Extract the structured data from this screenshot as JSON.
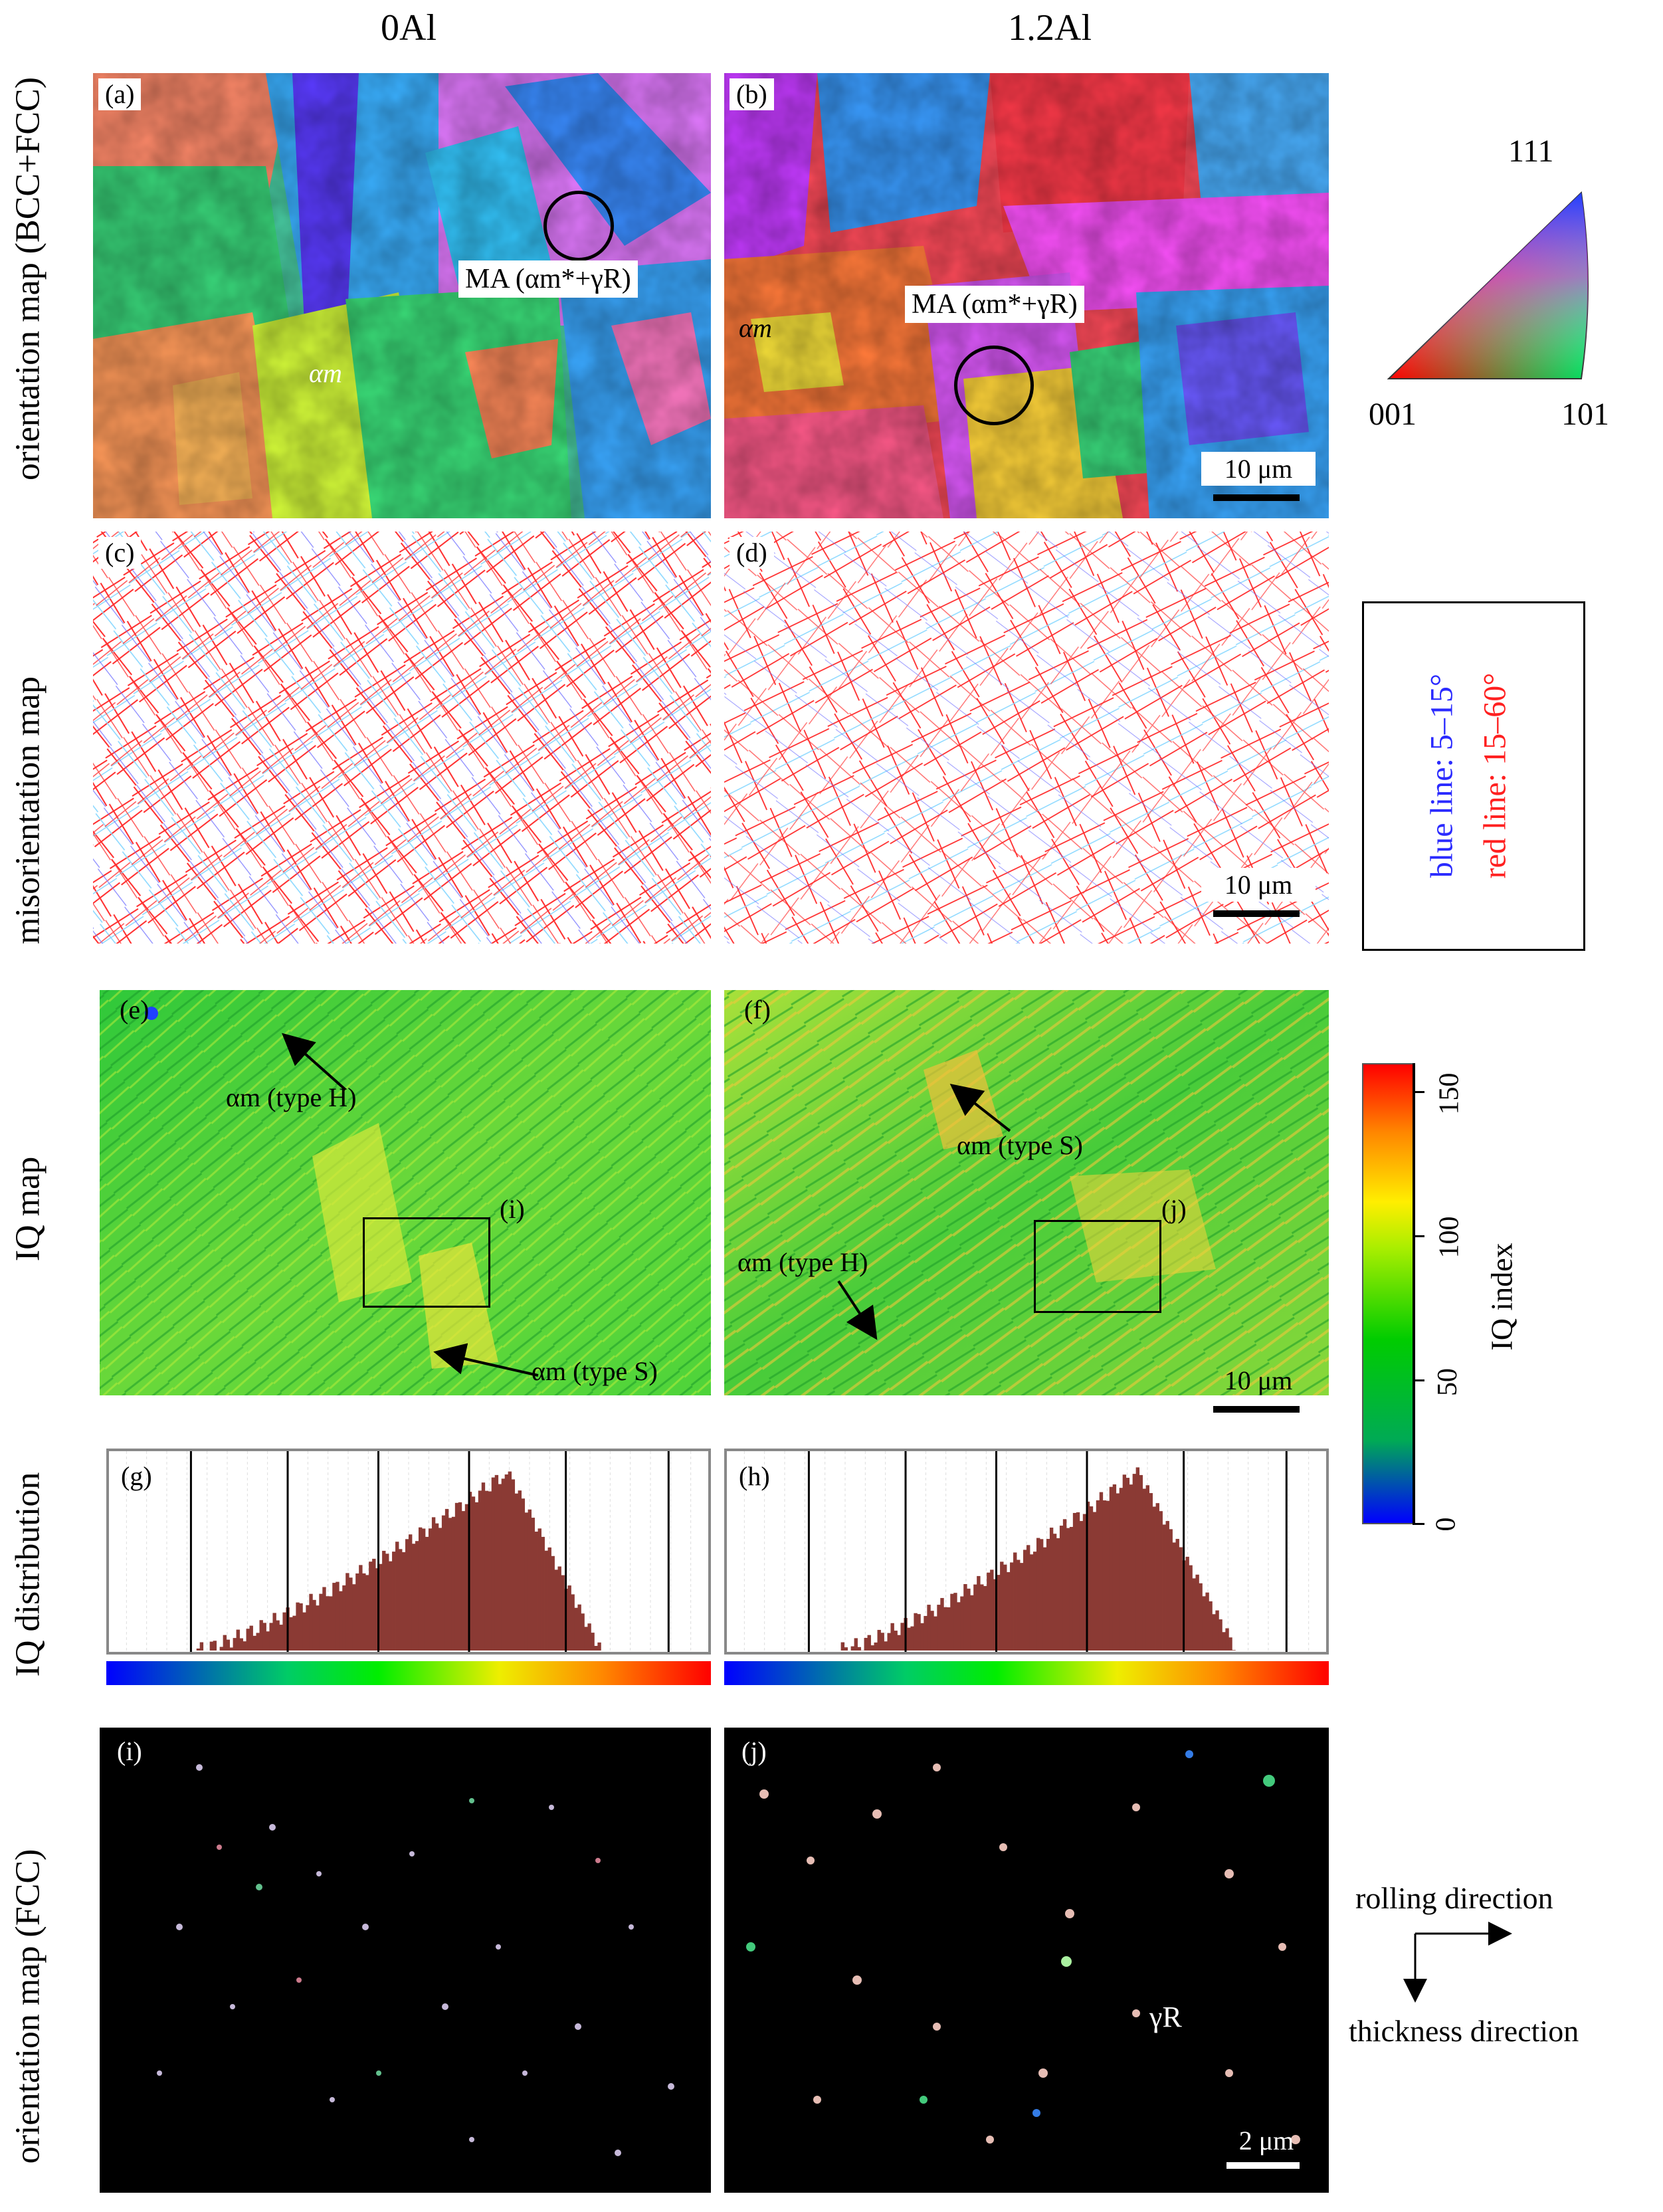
{
  "columns": {
    "left": "0Al",
    "right": "1.2Al"
  },
  "row_labels": {
    "orientation_bcc_fcc": "orientation map (BCC+FCC)",
    "misorientation": "misorientation map",
    "iq_map": "IQ map",
    "iq_distribution": "IQ distribution",
    "orientation_fcc": "orientation map (FCC)"
  },
  "panels": {
    "a": "(a)",
    "b": "(b)",
    "c": "(c)",
    "d": "(d)",
    "e": "(e)",
    "f": "(f)",
    "g": "(g)",
    "h": "(h)",
    "i": "(i)",
    "j": "(j)",
    "box_i": "(i)",
    "box_j": "(j)"
  },
  "annotations": {
    "ma_a": "MA (αm*+γR)",
    "ma_b": "MA (αm*+γR)",
    "alpha_m_a": "αm",
    "alpha_m_b": "αm",
    "e_type_h": "αm (type H)",
    "e_type_s": "αm (type S)",
    "f_type_s": "αm (type S)",
    "f_type_h": "αm (type H)",
    "gamma_r": "γR"
  },
  "scale_bars": {
    "a_b": "10 μm",
    "c_d": "10 μm",
    "e_f": "10 μm",
    "i_j": "2 μm"
  },
  "ipf_legend": {
    "top": "111",
    "left": "001",
    "right": "101"
  },
  "misorientation_legend": {
    "blue": "blue line: 5–15°",
    "red": "red line: 15–60°",
    "blue_color": "#2a2aff",
    "red_color": "#ff2020"
  },
  "iq_colorbar": {
    "label": "IQ index",
    "ticks": [
      "0",
      "50",
      "100",
      "150"
    ],
    "tick_values": [
      0,
      50,
      100,
      150
    ],
    "max": 160
  },
  "directions": {
    "rolling": "rolling direction",
    "thickness": "thickness direction"
  },
  "histograms": {
    "g": {
      "peak_fraction": 0.66,
      "start": 0.14,
      "end": 0.82
    },
    "h": {
      "peak_fraction": 0.68,
      "start": 0.18,
      "end": 0.85
    }
  }
}
